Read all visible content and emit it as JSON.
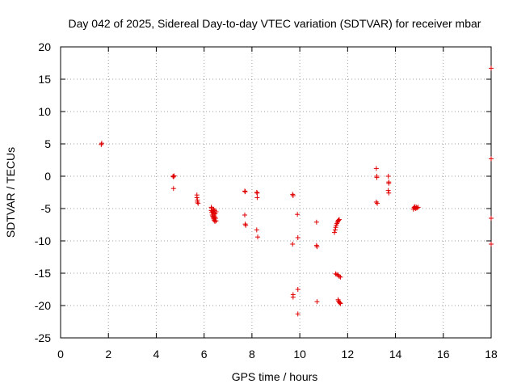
{
  "chart_data": {
    "type": "scatter",
    "title": "Day 042 of 2025, Sidereal Day-to-day VTEC variation (SDTVAR) for receiver mbar",
    "xlabel": "GPS time / hours",
    "ylabel": "SDTVAR / TECUs",
    "xlim": [
      0,
      18
    ],
    "ylim": [
      -25,
      20
    ],
    "xticks": [
      0,
      2,
      4,
      6,
      8,
      10,
      12,
      14,
      16,
      18
    ],
    "yticks": [
      20,
      15,
      10,
      5,
      0,
      -5,
      -10,
      -15,
      -20,
      -25
    ],
    "grid": true,
    "marker_color": "#e00000",
    "series": [
      {
        "name": "SDTVAR",
        "x": [
          1.7,
          1.72,
          4.7,
          4.72,
          4.75,
          4.72,
          5.7,
          5.7,
          5.72,
          5.72,
          5.75,
          6.3,
          6.3,
          6.32,
          6.32,
          6.34,
          6.35,
          6.36,
          6.38,
          6.38,
          6.4,
          6.4,
          6.42,
          6.42,
          6.44,
          6.45,
          6.45,
          6.46,
          6.48,
          6.5,
          6.5,
          7.7,
          7.72,
          7.72,
          7.74,
          7.7,
          8.2,
          8.22,
          8.22,
          8.2,
          8.24,
          9.7,
          9.72,
          9.7,
          9.72,
          9.72,
          9.9,
          9.92,
          9.92,
          9.92,
          10.7,
          10.7,
          10.72,
          10.72,
          11.45,
          11.48,
          11.5,
          11.52,
          11.55,
          11.58,
          11.6,
          11.62,
          11.65,
          11.5,
          11.55,
          11.6,
          11.65,
          11.7,
          11.6,
          11.62,
          11.65,
          11.68,
          11.7,
          13.2,
          13.22,
          13.22,
          13.2,
          13.24,
          13.7,
          13.72,
          13.72,
          13.7,
          13.72,
          14.75,
          14.78,
          14.8,
          14.82,
          14.85,
          14.88,
          14.9,
          14.95,
          18.0,
          18.0,
          18.0,
          18.0
        ],
        "y": [
          4.9,
          5.1,
          0.0,
          -0.1,
          0.05,
          -1.9,
          -2.9,
          -3.3,
          -3.7,
          -4.0,
          -4.2,
          -4.8,
          -5.3,
          -5.6,
          -5.0,
          -6.0,
          -5.4,
          -6.2,
          -5.7,
          -6.4,
          -5.1,
          -6.6,
          -6.0,
          -6.8,
          -5.3,
          -6.3,
          -7.0,
          -5.8,
          -6.5,
          -5.5,
          -6.9,
          -2.3,
          -2.4,
          -7.4,
          -7.6,
          -6.0,
          -2.5,
          -2.6,
          -3.3,
          -8.3,
          -9.4,
          -2.8,
          -3.0,
          -10.5,
          -18.3,
          -18.7,
          -5.9,
          -9.5,
          -17.5,
          -21.3,
          -7.1,
          -10.7,
          -10.9,
          -19.4,
          -8.7,
          -8.3,
          -7.9,
          -7.6,
          -7.3,
          -7.1,
          -6.9,
          -6.8,
          -6.7,
          -15.1,
          -15.2,
          -15.3,
          -15.5,
          -15.6,
          -19.1,
          -19.3,
          -19.5,
          -19.6,
          -19.7,
          1.2,
          0.0,
          -0.2,
          -4.0,
          -4.2,
          0.0,
          -0.9,
          -1.1,
          -2.2,
          -2.6,
          -5.1,
          -4.8,
          -4.9,
          -4.7,
          -5.0,
          -4.8,
          -4.9,
          -4.8,
          16.7,
          2.7,
          -6.5,
          -10.5
        ]
      }
    ]
  }
}
